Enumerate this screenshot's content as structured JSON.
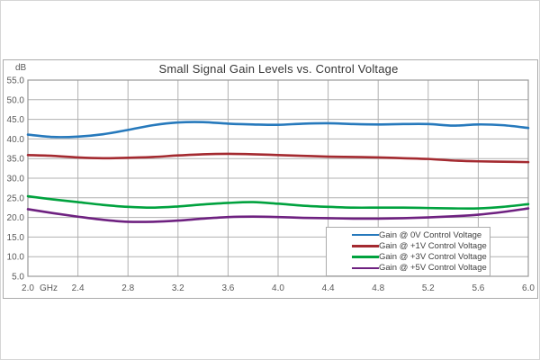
{
  "chart_data": {
    "type": "line",
    "title": "Small Signal Gain Levels vs. Control Voltage",
    "y_unit": "dB",
    "x_unit": "GHz",
    "xlim": [
      2.0,
      6.0
    ],
    "ylim": [
      5.0,
      55.0
    ],
    "x_tick_step": 0.4,
    "y_tick_step": 5.0,
    "grid": true,
    "legend_position": "bottom-right",
    "grid_color": "#b0b0b0",
    "border_color": "#9a9a9a",
    "tick_label_color": "#595959",
    "x": [
      2.0,
      2.2,
      2.4,
      2.6,
      2.8,
      3.0,
      3.2,
      3.4,
      3.6,
      3.8,
      4.0,
      4.2,
      4.4,
      4.6,
      4.8,
      5.0,
      5.2,
      5.4,
      5.6,
      5.8,
      6.0
    ],
    "series": [
      {
        "name": "Gain @ 0V Control Voltage",
        "color": "#2679bc",
        "values": [
          41.1,
          40.5,
          40.6,
          41.2,
          42.3,
          43.5,
          44.2,
          44.3,
          43.9,
          43.7,
          43.6,
          43.9,
          44.0,
          43.8,
          43.7,
          43.8,
          43.8,
          43.4,
          43.7,
          43.5,
          42.8
        ]
      },
      {
        "name": "Gain @ +1V Control Voltage",
        "color": "#a42a30",
        "values": [
          35.9,
          35.7,
          35.3,
          35.1,
          35.2,
          35.4,
          35.8,
          36.1,
          36.2,
          36.1,
          35.9,
          35.7,
          35.5,
          35.4,
          35.3,
          35.1,
          34.9,
          34.5,
          34.3,
          34.2,
          34.1
        ]
      },
      {
        "name": "Gain @ +3V Control Voltage",
        "color": "#00a23e",
        "values": [
          25.4,
          24.6,
          23.9,
          23.2,
          22.7,
          22.5,
          22.8,
          23.3,
          23.7,
          23.9,
          23.5,
          23.0,
          22.7,
          22.5,
          22.5,
          22.5,
          22.4,
          22.3,
          22.3,
          22.7,
          23.4
        ]
      },
      {
        "name": "Gain @ +5V Control Voltage",
        "color": "#6e2180",
        "values": [
          22.1,
          21.1,
          20.2,
          19.4,
          18.9,
          18.9,
          19.2,
          19.7,
          20.1,
          20.2,
          20.1,
          19.9,
          19.8,
          19.7,
          19.7,
          19.8,
          20.0,
          20.3,
          20.7,
          21.4,
          22.3
        ]
      }
    ]
  }
}
